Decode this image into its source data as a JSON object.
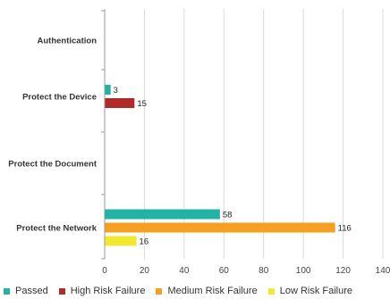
{
  "chart_data": {
    "type": "bar",
    "orientation": "horizontal",
    "categories": [
      "Authentication",
      "Protect the Device",
      "Protect the Document",
      "Protect the Network"
    ],
    "series": [
      {
        "name": "Passed",
        "color": "#20b2a3",
        "values": [
          null,
          3,
          null,
          58
        ]
      },
      {
        "name": "High Risk Failure",
        "color": "#b02a2a",
        "values": [
          null,
          15,
          null,
          null
        ]
      },
      {
        "name": "Medium Risk Failure",
        "color": "#f5a020",
        "values": [
          null,
          null,
          null,
          116
        ]
      },
      {
        "name": "Low Risk Failure",
        "color": "#f2e830",
        "values": [
          null,
          null,
          null,
          16
        ]
      }
    ],
    "xlim": [
      0,
      140
    ],
    "xticks": [
      0,
      20,
      40,
      60,
      80,
      100,
      120,
      140
    ],
    "xtick_labels": [
      "0",
      "20",
      "40",
      "60",
      "80",
      "100",
      "120",
      "140"
    ],
    "title": "",
    "xlabel": "",
    "ylabel": "",
    "grid": "vertical",
    "legend": "bottom"
  }
}
